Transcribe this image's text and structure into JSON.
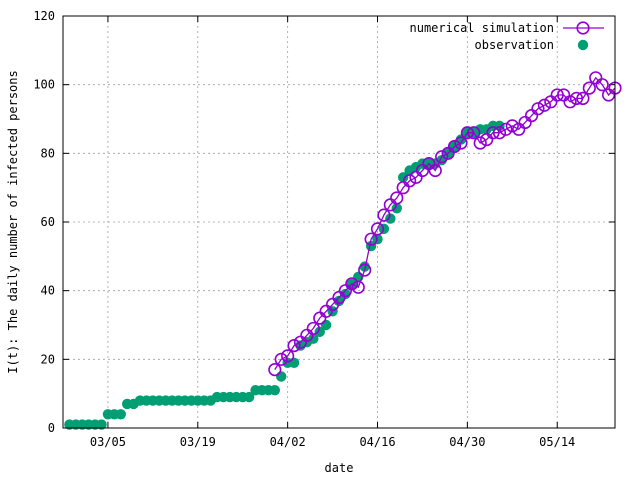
{
  "chart_data": {
    "type": "scatter",
    "title": "",
    "xlabel": "date",
    "ylabel": "I(t): The daily number of infected persons",
    "x_tick_labels": [
      "03/05",
      "03/19",
      "04/02",
      "04/16",
      "04/30",
      "05/14"
    ],
    "x_tick_dates": [
      "2020-03-05",
      "2020-03-19",
      "2020-04-02",
      "2020-04-16",
      "2020-04-30",
      "2020-05-14"
    ],
    "xlim": [
      "2020-02-27",
      "2020-05-23"
    ],
    "ylim": [
      0,
      120
    ],
    "y_ticks": [
      0,
      20,
      40,
      60,
      80,
      100,
      120
    ],
    "grid": true,
    "legend_position": "top-right",
    "colors": {
      "simulation": "#9400d3",
      "observation": "#009e73"
    },
    "series": [
      {
        "name": "numerical simulation",
        "style": "open-circle-line",
        "x": [
          "2020-03-31",
          "2020-04-01",
          "2020-04-02",
          "2020-04-03",
          "2020-04-04",
          "2020-04-05",
          "2020-04-06",
          "2020-04-07",
          "2020-04-08",
          "2020-04-09",
          "2020-04-10",
          "2020-04-11",
          "2020-04-12",
          "2020-04-13",
          "2020-04-14",
          "2020-04-15",
          "2020-04-16",
          "2020-04-17",
          "2020-04-18",
          "2020-04-19",
          "2020-04-20",
          "2020-04-21",
          "2020-04-22",
          "2020-04-23",
          "2020-04-24",
          "2020-04-25",
          "2020-04-26",
          "2020-04-27",
          "2020-04-28",
          "2020-04-29",
          "2020-04-30",
          "2020-05-01",
          "2020-05-02",
          "2020-05-03",
          "2020-05-04",
          "2020-05-05",
          "2020-05-06",
          "2020-05-07",
          "2020-05-08",
          "2020-05-09",
          "2020-05-10",
          "2020-05-11",
          "2020-05-12",
          "2020-05-13",
          "2020-05-14",
          "2020-05-15",
          "2020-05-16",
          "2020-05-17",
          "2020-05-18",
          "2020-05-19",
          "2020-05-20",
          "2020-05-21",
          "2020-05-22",
          "2020-05-23"
        ],
        "y": [
          17,
          20,
          21,
          24,
          25,
          27,
          29,
          32,
          34,
          36,
          38,
          40,
          42,
          41,
          46,
          55,
          58,
          62,
          65,
          67,
          70,
          72,
          73,
          75,
          77,
          75,
          79,
          80,
          82,
          83,
          86,
          86,
          83,
          84,
          86,
          86,
          87,
          88,
          87,
          89,
          91,
          93,
          94,
          95,
          97,
          97,
          95,
          96,
          96,
          99,
          102,
          100,
          97,
          99
        ]
      },
      {
        "name": "observation",
        "style": "filled-circle",
        "x": [
          "2020-02-28",
          "2020-02-29",
          "2020-03-01",
          "2020-03-02",
          "2020-03-03",
          "2020-03-04",
          "2020-03-05",
          "2020-03-06",
          "2020-03-07",
          "2020-03-08",
          "2020-03-09",
          "2020-03-10",
          "2020-03-11",
          "2020-03-12",
          "2020-03-13",
          "2020-03-14",
          "2020-03-15",
          "2020-03-16",
          "2020-03-17",
          "2020-03-18",
          "2020-03-19",
          "2020-03-20",
          "2020-03-21",
          "2020-03-22",
          "2020-03-23",
          "2020-03-24",
          "2020-03-25",
          "2020-03-26",
          "2020-03-27",
          "2020-03-28",
          "2020-03-29",
          "2020-03-30",
          "2020-03-31",
          "2020-04-01",
          "2020-04-02",
          "2020-04-03",
          "2020-04-04",
          "2020-04-05",
          "2020-04-06",
          "2020-04-07",
          "2020-04-08",
          "2020-04-09",
          "2020-04-10",
          "2020-04-11",
          "2020-04-12",
          "2020-04-13",
          "2020-04-14",
          "2020-04-15",
          "2020-04-16",
          "2020-04-17",
          "2020-04-18",
          "2020-04-19",
          "2020-04-20",
          "2020-04-21",
          "2020-04-22",
          "2020-04-23",
          "2020-04-24",
          "2020-04-25",
          "2020-04-26",
          "2020-04-27",
          "2020-04-28",
          "2020-04-29",
          "2020-04-30",
          "2020-05-01",
          "2020-05-02",
          "2020-05-03",
          "2020-05-04",
          "2020-05-05"
        ],
        "y": [
          1,
          1,
          1,
          1,
          1,
          1,
          4,
          4,
          4,
          7,
          7,
          8,
          8,
          8,
          8,
          8,
          8,
          8,
          8,
          8,
          8,
          8,
          8,
          9,
          9,
          9,
          9,
          9,
          9,
          11,
          11,
          11,
          11,
          15,
          19,
          19,
          24,
          25,
          26,
          28,
          30,
          34,
          37,
          39,
          42,
          44,
          47,
          53,
          55,
          58,
          61,
          64,
          73,
          75,
          76,
          77,
          77,
          77,
          78,
          80,
          82,
          84,
          86,
          86,
          87,
          87,
          88,
          88
        ]
      }
    ]
  }
}
